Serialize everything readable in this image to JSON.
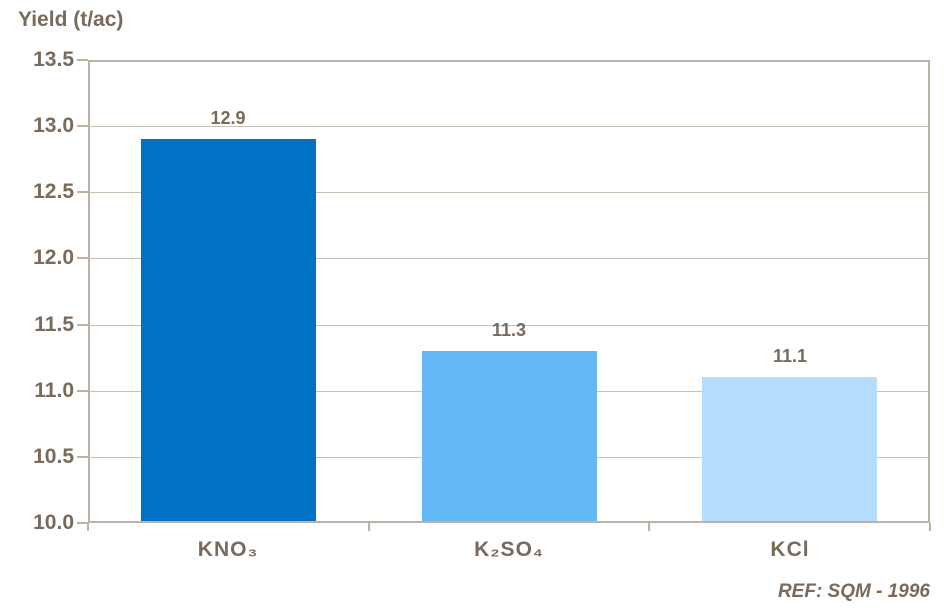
{
  "chart_data": {
    "type": "bar",
    "title": "Yield (t/ac)",
    "categories": [
      "KNO₃",
      "K₂SO₄",
      "KCl"
    ],
    "values": [
      12.9,
      11.3,
      11.1
    ],
    "data_labels": [
      "12.9",
      "11.3",
      "11.1"
    ],
    "bar_colors": [
      "#0071C5",
      "#63B9F8",
      "#B6DCFB"
    ],
    "ylim": [
      10.0,
      13.5
    ],
    "ytick_step": 0.5,
    "ytick_labels": [
      "13.5",
      "13.0",
      "12.5",
      "12.0",
      "11.5",
      "11.0",
      "10.5",
      "10.0"
    ],
    "grid": true,
    "legend": "none",
    "annotation": "REF: SQM - 1996",
    "colors": {
      "text": "#7A6A5B",
      "axis": "#BCB2A6",
      "gridline": "#C9C0B4"
    }
  }
}
